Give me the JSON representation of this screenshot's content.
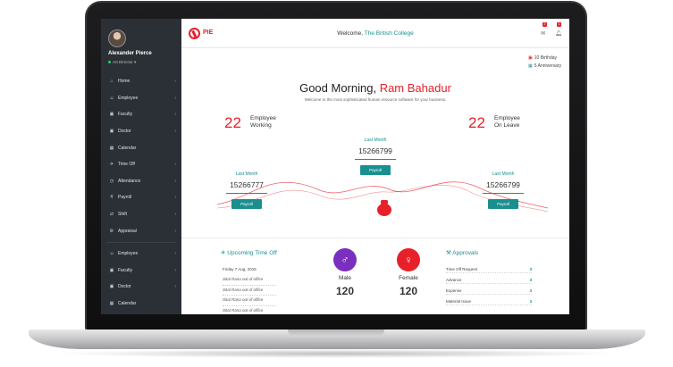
{
  "user": {
    "name": "Alexander Pierce",
    "role": "Art Director"
  },
  "sidebar": {
    "items": [
      {
        "label": "Home",
        "icon": "home-icon",
        "glyph": "⌂"
      },
      {
        "label": "Employee",
        "icon": "users-icon",
        "glyph": "👥"
      },
      {
        "label": "Faculty",
        "icon": "briefcase-icon",
        "glyph": "▣"
      },
      {
        "label": "Doctor",
        "icon": "briefcase-icon",
        "glyph": "▣"
      },
      {
        "label": "Calendar",
        "icon": "calendar-icon",
        "glyph": "▦"
      },
      {
        "label": "Time Off",
        "icon": "plane-icon",
        "glyph": "✈"
      },
      {
        "label": "Attendance",
        "icon": "clock-icon",
        "glyph": "◷"
      },
      {
        "label": "Payroll",
        "icon": "rupee-icon",
        "glyph": "₹"
      },
      {
        "label": "Shift",
        "icon": "shuffle-icon",
        "glyph": "⇄"
      },
      {
        "label": "Appraisal",
        "icon": "gear-icon",
        "glyph": "⚙"
      },
      {
        "label": "Employee",
        "icon": "users-icon",
        "glyph": "👥"
      },
      {
        "label": "Faculty",
        "icon": "briefcase-icon",
        "glyph": "▣"
      },
      {
        "label": "Doctor",
        "icon": "briefcase-icon",
        "glyph": "▣"
      },
      {
        "label": "Calendar",
        "icon": "calendar-icon",
        "glyph": "▦"
      }
    ]
  },
  "topbar": {
    "logo_text": "PIE",
    "welcome_prefix": "Welcome, ",
    "organization": "The British College",
    "mail_badge": "2",
    "bell_badge": "1"
  },
  "events": {
    "birthday": "10 Birthday",
    "anniversary": "5 Anniversary"
  },
  "greeting": {
    "prefix": "Good Morning, ",
    "name": "Ram Bahadur",
    "subtitle": "Welcome to the most sophisticated human resource software for your business."
  },
  "stats": {
    "working": {
      "count": "22",
      "line1": "Employee",
      "line2": "Working"
    },
    "on_leave": {
      "count": "22",
      "line1": "Employee",
      "line2": "On Leave"
    }
  },
  "last_month": [
    {
      "title": "Last Month",
      "value": "15266777",
      "button": "Payroll"
    },
    {
      "title": "Last Month",
      "value": "15266799",
      "button": "Payroll"
    },
    {
      "title": "Last Month",
      "value": "15266799",
      "button": "Payroll"
    }
  ],
  "time_off": {
    "title": "Upcoming Time Off",
    "date": "Friday 7 Aug, 2015",
    "entries": [
      "Sital Rana out of office",
      "Sital Rana out of office",
      "Sital Rana out of office",
      "Sital Rana out of office"
    ]
  },
  "gender": {
    "male": {
      "label": "Male",
      "value": "120",
      "color": "#7b2fbe"
    },
    "female": {
      "label": "Female",
      "value": "120",
      "color": "#e8202a"
    }
  },
  "approvals": {
    "title": "Approvals",
    "rows": [
      {
        "label": "Time Off Request",
        "count": "3"
      },
      {
        "label": "Advance",
        "count": "3"
      },
      {
        "label": "Expense",
        "count": "3"
      },
      {
        "label": "Material Issue",
        "count": "3"
      }
    ]
  },
  "colors": {
    "accent_red": "#e8202a",
    "accent_teal": "#1a8f8f",
    "sidebar_bg": "#2a3035"
  }
}
